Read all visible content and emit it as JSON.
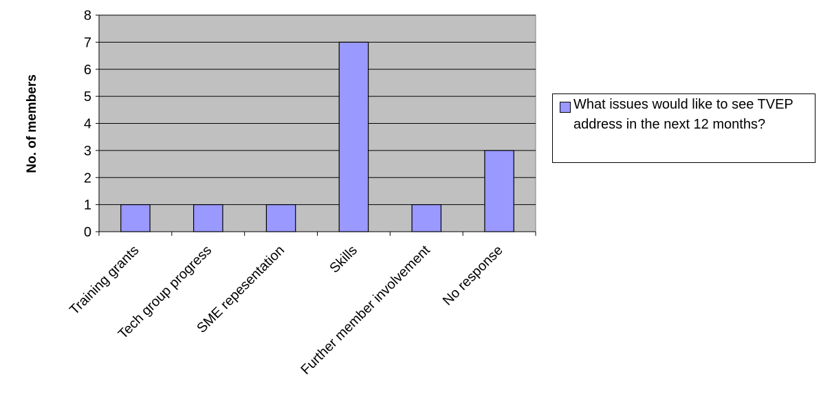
{
  "chart_data": {
    "type": "bar",
    "title": "",
    "xlabel": "",
    "ylabel": "No. of members",
    "categories": [
      "Training grants",
      "Tech group progress",
      "SME repesentation",
      "Skills",
      "Further member involvement",
      "No response"
    ],
    "series": [
      {
        "name": "What issues would like to see TVEP address in the next 12 months?",
        "values": [
          1,
          1,
          1,
          7,
          1,
          3
        ]
      }
    ],
    "ylim": [
      0,
      8
    ],
    "yticks": [
      "0",
      "1",
      "2",
      "3",
      "4",
      "5",
      "6",
      "7",
      "8"
    ],
    "grid": true,
    "legend_position": "right",
    "colors": {
      "bar": "#9999ff",
      "plot_bg": "#c0c0c0",
      "grid": "#000000"
    }
  }
}
